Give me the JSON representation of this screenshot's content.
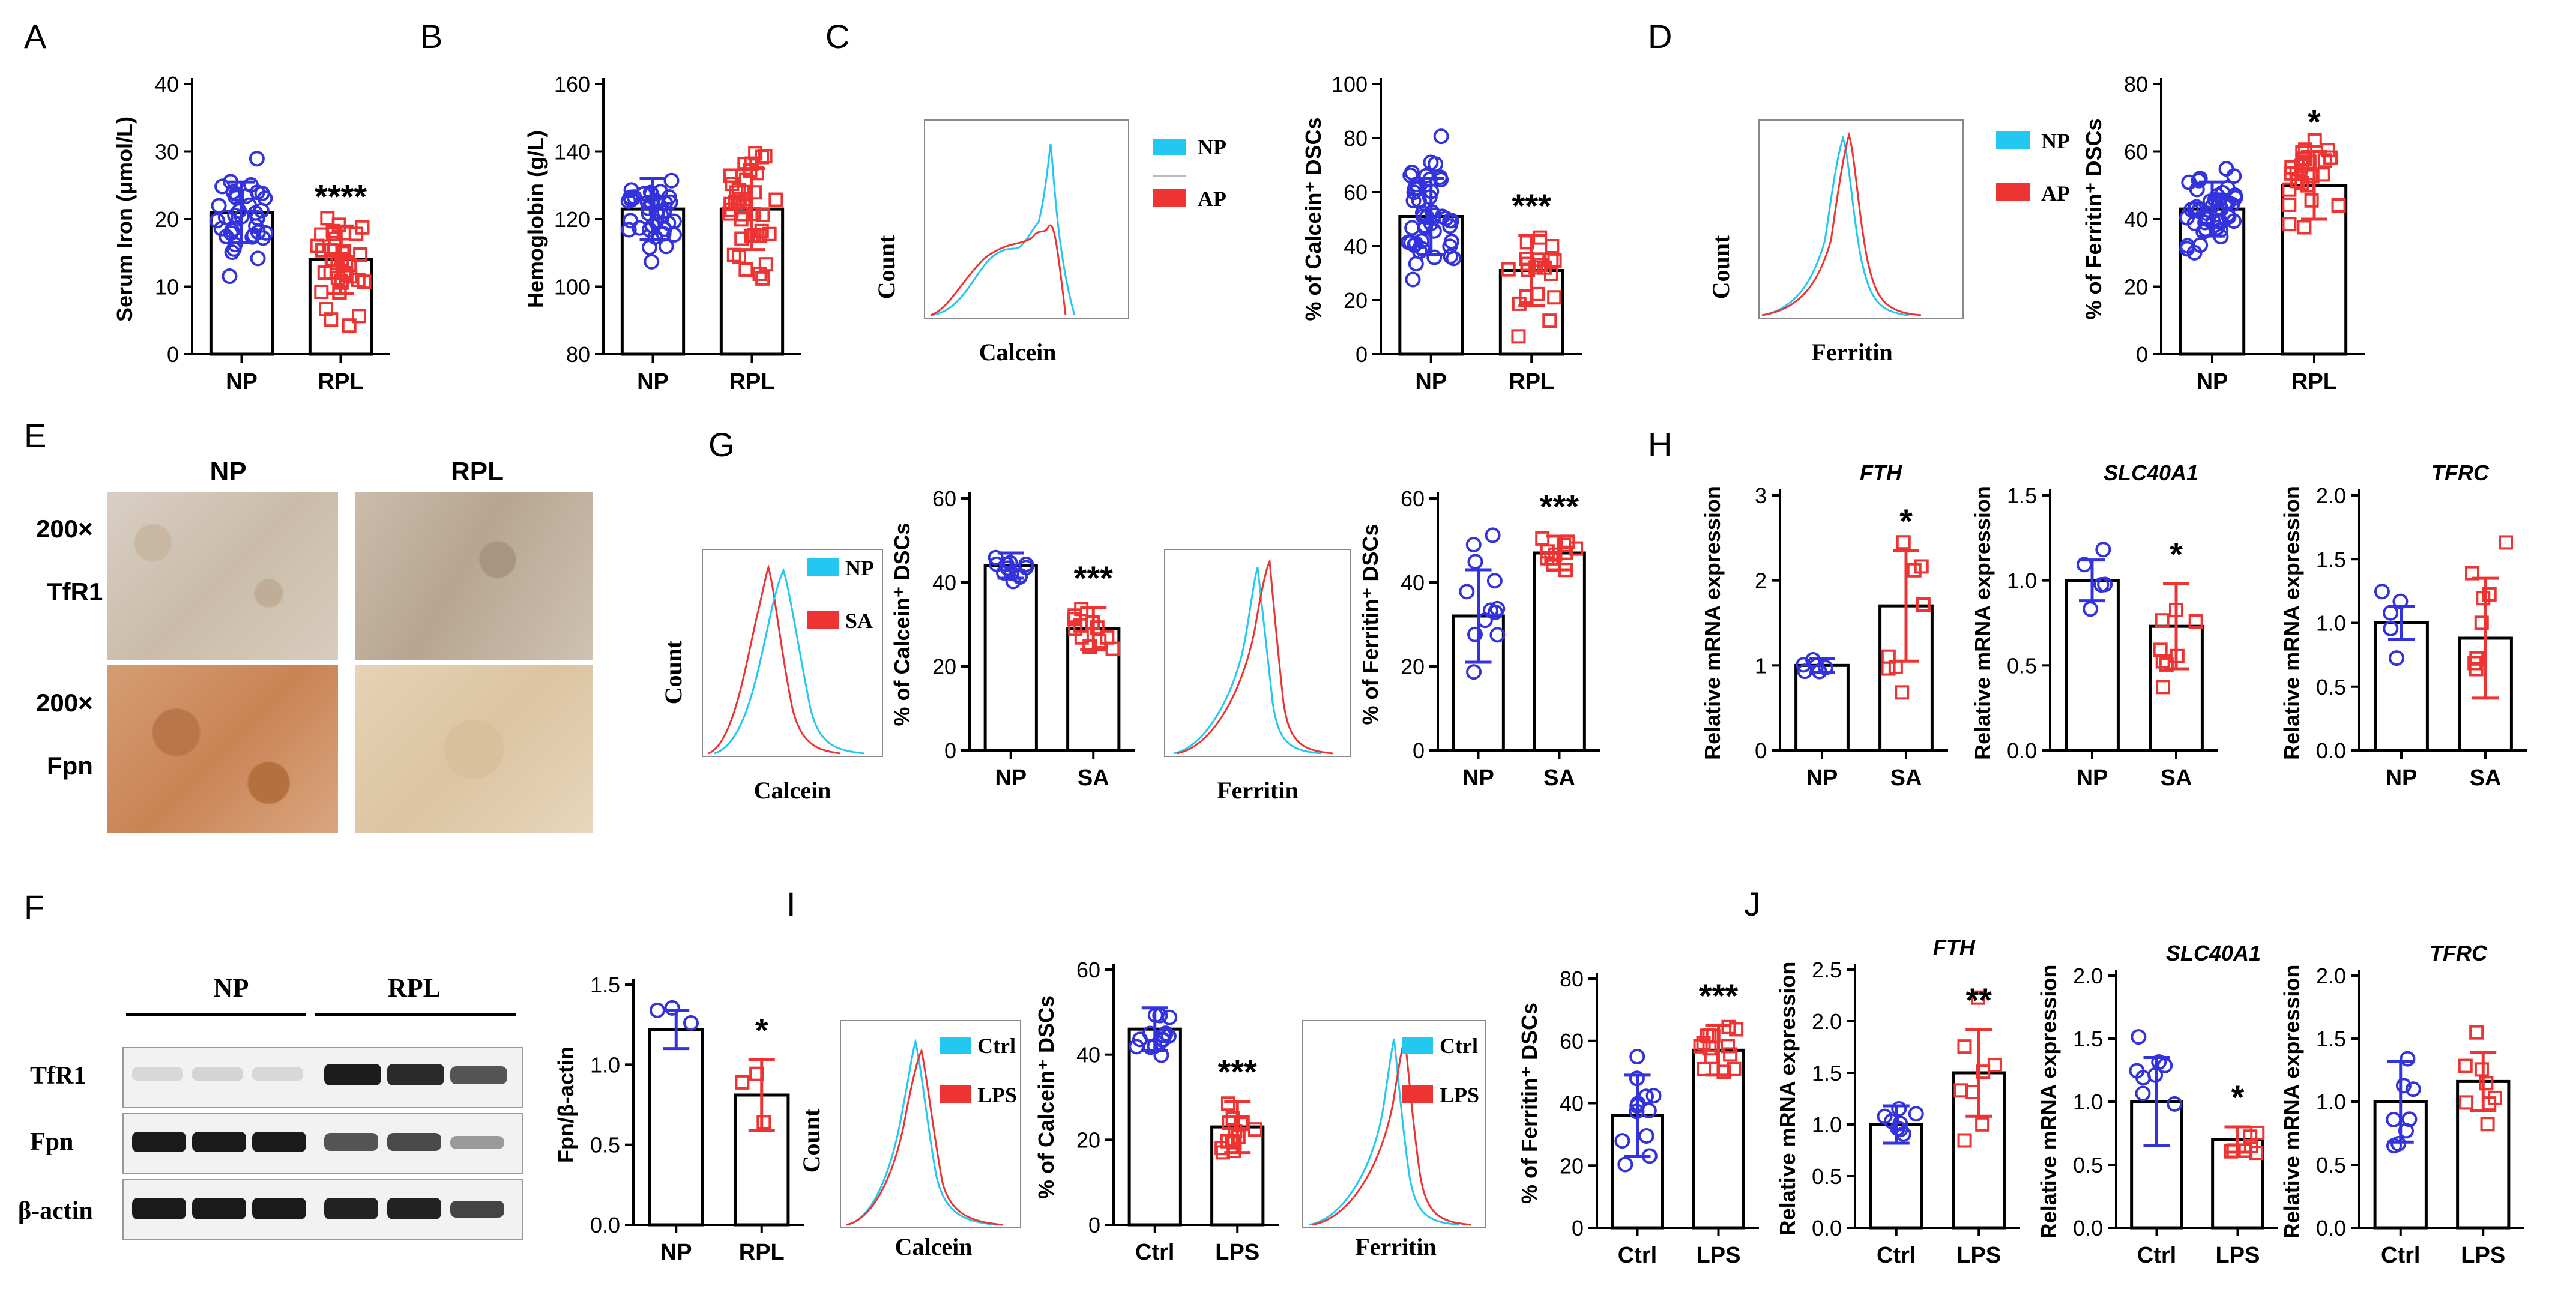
{
  "colors": {
    "np": "#3333dd",
    "rpl": "#ee3333",
    "cyan": "#22c8f0",
    "red": "#ee3333",
    "bar": "#000000"
  },
  "panels": {
    "A": {
      "letter": "A",
      "ylabel": "Serum Iron (μmol/L)",
      "ticks": [
        "0",
        "10",
        "20",
        "30",
        "40"
      ],
      "sig": "****",
      "cats": [
        "NP",
        "RPL"
      ]
    },
    "B": {
      "letter": "B",
      "ylabel": "Hemoglobin (g/L)",
      "ticks": [
        "80",
        "100",
        "120",
        "140",
        "160"
      ],
      "cats": [
        "NP",
        "RPL"
      ]
    },
    "C": {
      "letter": "C",
      "hist_ylabel": "Count",
      "hist_xlabel": "Calcein",
      "legend": [
        "NP",
        "AP"
      ],
      "ylabel": "% of Calcein⁺ DSCs",
      "ticks": [
        "0",
        "20",
        "40",
        "60",
        "80",
        "100"
      ],
      "sig": "***",
      "cats": [
        "NP",
        "RPL"
      ]
    },
    "D": {
      "letter": "D",
      "hist_ylabel": "Count",
      "hist_xlabel": "Ferritin",
      "legend": [
        "NP",
        "AP"
      ],
      "ylabel": "% of Ferritin⁺ DSCs",
      "ticks": [
        "0",
        "20",
        "40",
        "60",
        "80"
      ],
      "sig": "*",
      "cats": [
        "NP",
        "RPL"
      ]
    },
    "E": {
      "letter": "E",
      "col_np": "NP",
      "col_rpl": "RPL",
      "mag1": "200×",
      "row1": "TfR1",
      "mag2": "200×",
      "row2": "Fpn"
    },
    "F": {
      "letter": "F",
      "col_np": "NP",
      "col_rpl": "RPL",
      "rows": [
        "TfR1",
        "Fpn",
        "β-actin"
      ],
      "ylabel": "Fpn/β-actin",
      "ticks": [
        "0.0",
        "0.5",
        "1.0",
        "1.5"
      ],
      "sig": "*",
      "cats": [
        "NP",
        "RPL"
      ]
    },
    "G": {
      "letter": "G",
      "hist_ylabel": "Count",
      "hist1_xlabel": "Calcein",
      "hist2_xlabel": "Ferritin",
      "legend": [
        "NP",
        "SA"
      ],
      "ylabel1": "% of Calcein⁺ DSCs",
      "ticks1": [
        "0",
        "20",
        "40",
        "60"
      ],
      "sig1": "***",
      "ylabel2": "% of Ferritin⁺ DSCs",
      "ticks2": [
        "0",
        "20",
        "40",
        "60"
      ],
      "sig2": "***",
      "cats": [
        "NP",
        "SA"
      ]
    },
    "H": {
      "letter": "H",
      "ylabel": "Relative mRNA expression",
      "cats": [
        "NP",
        "SA"
      ],
      "genes": [
        {
          "title": "FTH",
          "ticks": [
            "0",
            "1",
            "2",
            "3"
          ],
          "sig": "*"
        },
        {
          "title": "SLC40A1",
          "ticks": [
            "0.0",
            "0.5",
            "1.0",
            "1.5"
          ],
          "sig": "*"
        },
        {
          "title": "TFRC",
          "ticks": [
            "0.0",
            "0.5",
            "1.0",
            "1.5",
            "2.0"
          ],
          "sig": ""
        }
      ]
    },
    "I": {
      "letter": "I",
      "hist_ylabel": "Count",
      "hist1_xlabel": "Calcein",
      "hist2_xlabel": "Ferritin",
      "legend": [
        "Ctrl",
        "LPS"
      ],
      "ylabel1": "% of Calcein⁺ DSCs",
      "ticks1": [
        "0",
        "20",
        "40",
        "60"
      ],
      "sig1": "***",
      "ylabel2": "% of Ferritin⁺ DSCs",
      "ticks2": [
        "0",
        "20",
        "40",
        "60",
        "80"
      ],
      "sig2": "***",
      "cats": [
        "Ctrl",
        "LPS"
      ]
    },
    "J": {
      "letter": "J",
      "ylabel": "Relative mRNA expression",
      "cats": [
        "Ctrl",
        "LPS"
      ],
      "genes": [
        {
          "title": "FTH",
          "ticks": [
            "0.0",
            "0.5",
            "1.0",
            "1.5",
            "2.0",
            "2.5"
          ],
          "sig": "**"
        },
        {
          "title": "SLC40A1",
          "ticks": [
            "0.0",
            "0.5",
            "1.0",
            "1.5",
            "2.0"
          ],
          "sig": "*"
        },
        {
          "title": "TFRC",
          "ticks": [
            "0.0",
            "0.5",
            "1.0",
            "1.5",
            "2.0"
          ],
          "sig": ""
        }
      ]
    }
  },
  "chart_data": [
    {
      "id": "A",
      "type": "bar",
      "ylabel": "Serum Iron (μmol/L)",
      "ylim": [
        0,
        40
      ],
      "categories": [
        "NP",
        "RPL"
      ],
      "means": [
        21,
        14
      ],
      "sd": [
        4.5,
        5
      ],
      "n": [
        38,
        38
      ],
      "sig": "****"
    },
    {
      "id": "B",
      "type": "bar",
      "ylabel": "Hemoglobin (g/L)",
      "ylim": [
        80,
        160
      ],
      "categories": [
        "NP",
        "RPL"
      ],
      "means": [
        123,
        123
      ],
      "sd": [
        9,
        12
      ],
      "n": [
        38,
        38
      ]
    },
    {
      "id": "C",
      "type": "bar",
      "ylabel": "% of Calcein+ DSCs",
      "ylim": [
        0,
        100
      ],
      "categories": [
        "NP",
        "RPL"
      ],
      "means": [
        51,
        31
      ],
      "sd": [
        14,
        13
      ],
      "n": [
        48,
        20
      ],
      "sig": "***"
    },
    {
      "id": "D",
      "type": "bar",
      "ylabel": "% of Ferritin+ DSCs",
      "ylim": [
        0,
        80
      ],
      "categories": [
        "NP",
        "RPL"
      ],
      "means": [
        43,
        50
      ],
      "sd": [
        8,
        10
      ],
      "n": [
        44,
        24
      ],
      "sig": "*"
    },
    {
      "id": "F",
      "type": "bar",
      "ylabel": "Fpn/β-actin",
      "ylim": [
        0,
        1.5
      ],
      "categories": [
        "NP",
        "RPL"
      ],
      "means": [
        1.22,
        0.81
      ],
      "sd": [
        0.12,
        0.22
      ],
      "n": [
        3,
        3
      ],
      "sig": "*"
    },
    {
      "id": "G1",
      "type": "bar",
      "ylabel": "% of Calcein+ DSCs",
      "ylim": [
        0,
        60
      ],
      "categories": [
        "NP",
        "SA"
      ],
      "means": [
        44,
        29
      ],
      "sd": [
        3,
        5
      ],
      "n": [
        12,
        12
      ],
      "sig": "***"
    },
    {
      "id": "G2",
      "type": "bar",
      "ylabel": "% of Ferritin+ DSCs",
      "ylim": [
        0,
        60
      ],
      "categories": [
        "NP",
        "SA"
      ],
      "means": [
        32,
        47
      ],
      "sd": [
        11,
        4
      ],
      "n": [
        12,
        12
      ],
      "sig": "***"
    },
    {
      "id": "H1",
      "type": "bar",
      "title": "FTH",
      "ylabel": "Relative mRNA expression",
      "ylim": [
        0,
        3
      ],
      "categories": [
        "NP",
        "SA"
      ],
      "means": [
        1.0,
        1.7
      ],
      "sd": [
        0.08,
        0.65
      ],
      "n": [
        6,
        8
      ],
      "sig": "*"
    },
    {
      "id": "H2",
      "type": "bar",
      "title": "SLC40A1",
      "ylabel": "Relative mRNA expression",
      "ylim": [
        0,
        1.5
      ],
      "categories": [
        "NP",
        "SA"
      ],
      "means": [
        1.0,
        0.73
      ],
      "sd": [
        0.12,
        0.25
      ],
      "n": [
        5,
        8
      ],
      "sig": "*"
    },
    {
      "id": "H3",
      "type": "bar",
      "title": "TFRC",
      "ylabel": "Relative mRNA expression",
      "ylim": [
        0,
        2.0
      ],
      "categories": [
        "NP",
        "SA"
      ],
      "means": [
        1.0,
        0.88
      ],
      "sd": [
        0.13,
        0.47
      ],
      "n": [
        5,
        8
      ]
    },
    {
      "id": "I1",
      "type": "bar",
      "ylabel": "% of Calcein+ DSCs",
      "ylim": [
        0,
        60
      ],
      "categories": [
        "Ctrl",
        "LPS"
      ],
      "means": [
        46,
        23
      ],
      "sd": [
        5,
        6
      ],
      "n": [
        14,
        14
      ],
      "sig": "***"
    },
    {
      "id": "I2",
      "type": "bar",
      "ylabel": "% of Ferritin+ DSCs",
      "ylim": [
        0,
        80
      ],
      "categories": [
        "Ctrl",
        "LPS"
      ],
      "means": [
        36,
        57
      ],
      "sd": [
        13,
        8
      ],
      "n": [
        12,
        14
      ],
      "sig": "***"
    },
    {
      "id": "J1",
      "type": "bar",
      "title": "FTH",
      "ylabel": "Relative mRNA expression",
      "ylim": [
        0,
        2.5
      ],
      "categories": [
        "Ctrl",
        "LPS"
      ],
      "means": [
        1.0,
        1.5
      ],
      "sd": [
        0.18,
        0.42
      ],
      "n": [
        8,
        8
      ],
      "sig": "**"
    },
    {
      "id": "J2",
      "type": "bar",
      "title": "SLC40A1",
      "ylabel": "Relative mRNA expression",
      "ylim": [
        0,
        2.0
      ],
      "categories": [
        "Ctrl",
        "LPS"
      ],
      "means": [
        1.0,
        0.7
      ],
      "sd": [
        0.35,
        0.1
      ],
      "n": [
        8,
        7
      ],
      "sig": "*"
    },
    {
      "id": "J3",
      "type": "bar",
      "title": "TFRC",
      "ylabel": "Relative mRNA expression",
      "ylim": [
        0,
        2.0
      ],
      "categories": [
        "Ctrl",
        "LPS"
      ],
      "means": [
        1.0,
        1.16
      ],
      "sd": [
        0.32,
        0.23
      ],
      "n": [
        8,
        8
      ]
    }
  ]
}
